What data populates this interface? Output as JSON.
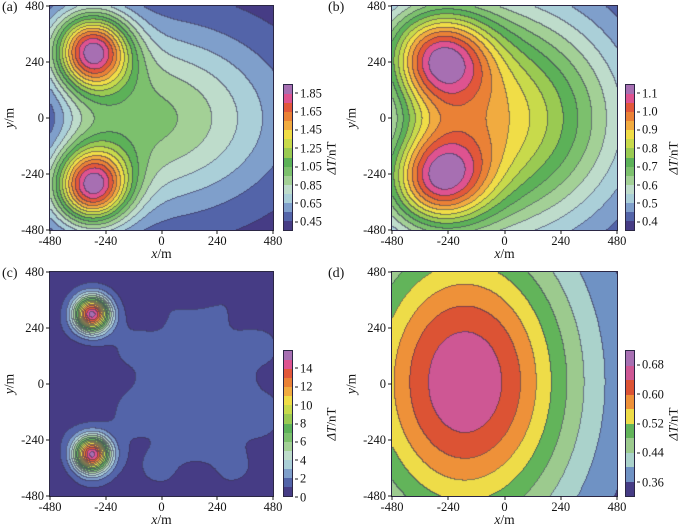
{
  "figure": {
    "background": "#ffffff",
    "contour_line_color": "#3a3356"
  },
  "palettes": {
    "spectral16": [
      "#463c85",
      "#5364a9",
      "#7f9fcb",
      "#aacfd8",
      "#bedccb",
      "#a3d096",
      "#7cc06d",
      "#5cb158",
      "#9aca52",
      "#c8da4b",
      "#f0dd47",
      "#f1ab40",
      "#ea8136",
      "#e2573a",
      "#de5390",
      "#a76fb2"
    ],
    "spectral10": [
      "#463c85",
      "#6f92c4",
      "#aad2cb",
      "#9cca8e",
      "#62b45a",
      "#eedc48",
      "#ee9139",
      "#dc5334",
      "#ce5794",
      "#a76fb2"
    ]
  },
  "chart_data": {
    "type": "heatmap",
    "subtype": "filled-contour-grid",
    "grid": "2x2",
    "panels": [
      {
        "id": "a",
        "label": "(a)",
        "xlabel": "x/m",
        "ylabel": "y/m",
        "xlim": [
          -480,
          480
        ],
        "ylim": [
          -480,
          480
        ],
        "xticks": [
          "-480",
          "-240",
          "0",
          "240",
          "480"
        ],
        "yticks": [
          "480",
          "240",
          "0",
          "-240",
          "-480"
        ],
        "colorbar": {
          "label": "ΔT/nT",
          "vmin": 0.35,
          "vmax": 1.95,
          "bands": 16,
          "palette": "spectral16",
          "tick_values": [
            0.45,
            0.65,
            0.85,
            1.05,
            1.25,
            1.45,
            1.65,
            1.85
          ],
          "tick_labels": [
            "0.45",
            "0.65",
            "0.85",
            "1.05",
            "1.25",
            "1.45",
            "1.65",
            "1.85"
          ]
        },
        "peaks": [
          {
            "x": -300,
            "y": 290,
            "value": 1.9
          },
          {
            "x": -300,
            "y": -290,
            "value": 1.9
          }
        ],
        "field": {
          "base": 0.36,
          "noise": 0,
          "terms": [
            {
              "amp": 0.62,
              "cx": -60,
              "cy": 0,
              "sx": 400,
              "sy": 278
            },
            {
              "amp": 1.28,
              "cx": -300,
              "cy": 290,
              "sx": 115,
              "sy": 115
            },
            {
              "amp": 1.28,
              "cx": -300,
              "cy": -290,
              "sx": 115,
              "sy": 115
            },
            {
              "amp": -0.25,
              "cx": -520,
              "cy": 0,
              "sx": 120,
              "sy": 160
            }
          ]
        }
      },
      {
        "id": "b",
        "label": "(b)",
        "xlabel": "x/m",
        "ylabel": "y/m",
        "xlim": [
          -480,
          480
        ],
        "ylim": [
          -480,
          480
        ],
        "xticks": [
          "-480",
          "-240",
          "0",
          "240",
          "480"
        ],
        "yticks": [
          "480",
          "240",
          "0",
          "-240",
          "-480"
        ],
        "colorbar": {
          "label": "ΔT/nT",
          "vmin": 0.35,
          "vmax": 1.15,
          "bands": 16,
          "palette": "spectral16",
          "tick_values": [
            0.4,
            0.5,
            0.6,
            0.7,
            0.8,
            0.9,
            1.0,
            1.1
          ],
          "tick_labels": [
            "0.4",
            "0.5",
            "0.6",
            "0.7",
            "0.8",
            "0.9",
            "1.0",
            "1.1"
          ]
        },
        "peaks": [
          {
            "x": -280,
            "y": 265,
            "value": 1.12
          },
          {
            "x": -280,
            "y": -265,
            "value": 1.12
          }
        ],
        "field": {
          "base": 0.345,
          "noise": 0,
          "terms": [
            {
              "amp": 0.545,
              "cx": -60,
              "cy": 0,
              "sx": 400,
              "sy": 360
            },
            {
              "amp": 0.44,
              "cx": -280,
              "cy": 265,
              "sx": 150,
              "sy": 140
            },
            {
              "amp": 0.44,
              "cx": -280,
              "cy": -265,
              "sx": 150,
              "sy": 140
            },
            {
              "amp": -0.12,
              "cx": -545,
              "cy": 0,
              "sx": 130,
              "sy": 170
            }
          ]
        }
      },
      {
        "id": "c",
        "label": "(c)",
        "xlabel": "x/m",
        "ylabel": "y/m",
        "xlim": [
          -480,
          480
        ],
        "ylim": [
          -480,
          480
        ],
        "xticks": [
          "-480",
          "-240",
          "0",
          "240",
          "480"
        ],
        "yticks": [
          "480",
          "240",
          "0",
          "-240",
          "-480"
        ],
        "colorbar": {
          "label": "ΔT/nT",
          "vmin": 0,
          "vmax": 16,
          "bands": 16,
          "palette": "spectral16",
          "tick_values": [
            0,
            2,
            4,
            6,
            8,
            10,
            12,
            14
          ],
          "tick_labels": [
            "0",
            "2",
            "4",
            "6",
            "8",
            "10",
            "12",
            "14"
          ]
        },
        "peaks": [
          {
            "x": -300,
            "y": 300,
            "value": 15
          },
          {
            "x": -300,
            "y": -300,
            "value": 15
          }
        ],
        "field": {
          "base": 0.55,
          "noise": 0.22,
          "terms": [
            {
              "amp": 1.05,
              "cx": 150,
              "cy": -40,
              "sx": 260,
              "sy": 270
            },
            {
              "amp": 14.6,
              "cx": -300,
              "cy": 300,
              "sx": 52,
              "sy": 52
            },
            {
              "amp": 14.6,
              "cx": -300,
              "cy": -300,
              "sx": 52,
              "sy": 52
            }
          ]
        }
      },
      {
        "id": "d",
        "label": "(d)",
        "xlabel": "x/m",
        "ylabel": "y/m",
        "xlim": [
          -480,
          480
        ],
        "ylim": [
          -480,
          480
        ],
        "xticks": [
          "-480",
          "-240",
          "0",
          "240",
          "480"
        ],
        "yticks": [
          "480",
          "240",
          "0",
          "-240",
          "-480"
        ],
        "colorbar": {
          "label": "ΔT/nT",
          "vmin": 0.32,
          "vmax": 0.72,
          "bands": 10,
          "palette": "spectral10",
          "tick_values": [
            0.36,
            0.44,
            0.52,
            0.6,
            0.68
          ],
          "tick_labels": [
            "0.36",
            "0.44",
            "0.52",
            "0.60",
            "0.68"
          ]
        },
        "peaks": [
          {
            "x": -170,
            "y": 10,
            "value": 0.67
          }
        ],
        "field": {
          "base": 0.325,
          "noise": 0,
          "terms": [
            {
              "amp": 0.35,
              "cx": -170,
              "cy": 10,
              "sx": 340,
              "sy": 470
            }
          ]
        }
      }
    ]
  }
}
